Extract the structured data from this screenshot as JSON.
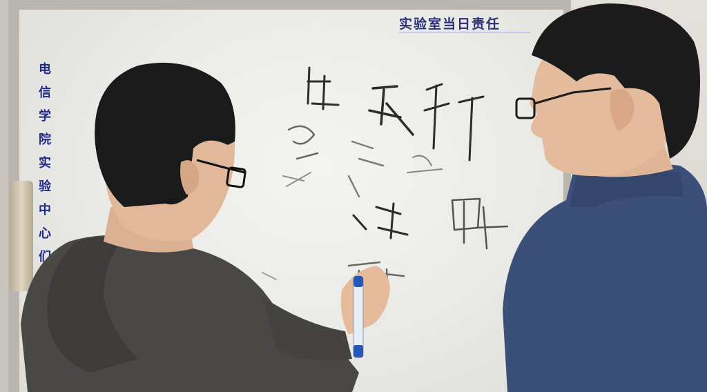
{
  "scene": {
    "description_colors": {
      "board": "#efefec",
      "header_text": "#2b2f7a",
      "vertical_text": "#1f2a8a",
      "left_hoodie": "#4a4847",
      "right_sweater": "#3c4f78",
      "hair": "#1a1a1a",
      "skin": "#e2b89a"
    }
  },
  "board": {
    "header": "实验室当日责任",
    "vertical_text": [
      "电",
      "信",
      "学",
      "院",
      "实",
      "验",
      "中",
      "心",
      "们"
    ]
  },
  "icons": {
    "marker": "whiteboard-marker-icon",
    "glasses": "eyeglasses-icon"
  }
}
